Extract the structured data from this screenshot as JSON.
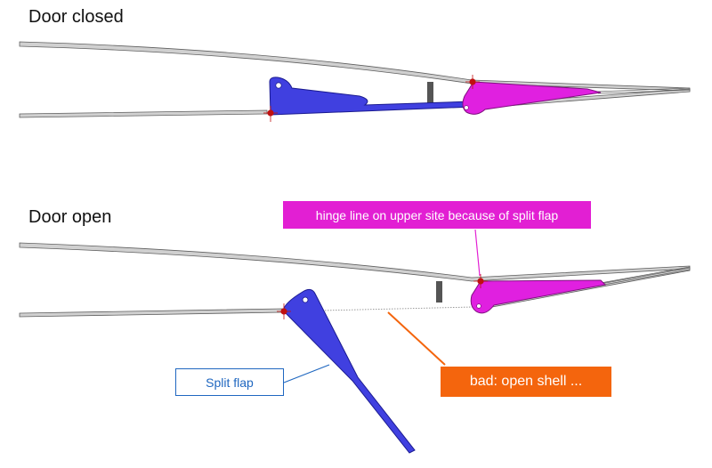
{
  "titles": {
    "closed": "Door closed",
    "open": "Door open"
  },
  "callouts": {
    "hinge_line": "hinge line on upper site because of split flap",
    "split_flap": "Split flap",
    "bad": "bad: open shell ..."
  },
  "colors": {
    "shell": "#d0d0d0",
    "shell_outline": "#606060",
    "split_flap": "#4040e0",
    "hinge_fitting": "#e020e0",
    "hinge_point": "#c01010",
    "hinge_callout_bg": "#e21fd3",
    "split_callout_border": "#1f67c0",
    "bad_callout_bg": "#f4650d",
    "stiffener": "#555555"
  }
}
